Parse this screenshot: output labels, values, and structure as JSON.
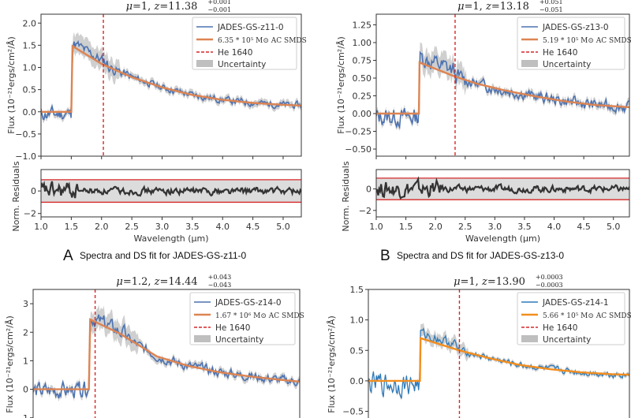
{
  "chart_data": [
    {
      "type": "line",
      "panel_letter": "A",
      "caption": "Spectra and DS fit for JADES-GS-z11-0",
      "title": {
        "mu": "1",
        "z": "11.38",
        "z_plus": "+0.001",
        "z_minus": "−0.001"
      },
      "xlabel": "Wavelength (μm)",
      "ylabel": "Flux (10⁻²¹ergs/cm²/Å)",
      "residual_ylabel": "Norm. Residuals",
      "xlim": [
        1.0,
        5.3
      ],
      "ylim": [
        -1.0,
        2.2
      ],
      "residual_ylim": [
        -2.3,
        1.9
      ],
      "xticks": [
        "1.0",
        "1.5",
        "2.0",
        "2.5",
        "3.0",
        "3.5",
        "4.0",
        "4.5",
        "5.0"
      ],
      "xtick_values": [
        1.0,
        1.5,
        2.0,
        2.5,
        3.0,
        3.5,
        4.0,
        4.5,
        5.0
      ],
      "yticks": [
        "−1.0",
        "−0.5",
        "0.0",
        "0.5",
        "1.0",
        "1.5",
        "2.0"
      ],
      "ytick_values": [
        -1.0,
        -0.5,
        0.0,
        0.5,
        1.0,
        1.5,
        2.0
      ],
      "residual_yticks": [
        "−2",
        "0"
      ],
      "residual_ytick_values": [
        -2,
        0
      ],
      "residual_band": [
        -1,
        1
      ],
      "legend": {
        "placement": "top-right",
        "entries": [
          "JADES-GS-z11-0",
          "6.35 * 10⁵ M⊙ AC SMDS",
          "He 1640",
          "Uncertainty"
        ]
      },
      "he_line": 2.03,
      "model": {
        "break": 1.5,
        "peak": 1.48,
        "points": [
          [
            1.0,
            0.0
          ],
          [
            1.5,
            0.0
          ],
          [
            1.52,
            1.48
          ],
          [
            2.0,
            1.08
          ],
          [
            2.5,
            0.78
          ],
          [
            3.0,
            0.55
          ],
          [
            3.5,
            0.38
          ],
          [
            4.0,
            0.27
          ],
          [
            4.5,
            0.2
          ],
          [
            5.0,
            0.16
          ],
          [
            5.3,
            0.14
          ]
        ]
      },
      "noise": {
        "pre": 0.25,
        "post": 0.12,
        "unc": 0.22,
        "seed": 11
      },
      "has_residuals": true
    },
    {
      "type": "line",
      "panel_letter": "B",
      "caption": "Spectra and DS fit for JADES-GS-z13-0",
      "title": {
        "mu": "1",
        "z": "13.18",
        "z_plus": "+0.051",
        "z_minus": "−0.051"
      },
      "xlabel": "Wavelength (μm)",
      "ylabel": "Flux (10⁻²¹ergs/cm²/Å)",
      "residual_ylabel": "Norm. Residuals",
      "xlim": [
        1.0,
        5.27
      ],
      "ylim": [
        -0.6,
        1.4
      ],
      "residual_ylim": [
        -2.6,
        1.8
      ],
      "xticks": [
        "1.0",
        "1.5",
        "2.0",
        "2.5",
        "3.0",
        "3.5",
        "4.0",
        "4.5",
        "5.0"
      ],
      "xtick_values": [
        1.0,
        1.5,
        2.0,
        2.5,
        3.0,
        3.5,
        4.0,
        4.5,
        5.0
      ],
      "yticks": [
        "−0.50",
        "−0.25",
        "0.00",
        "0.25",
        "0.50",
        "0.75",
        "1.00",
        "1.25"
      ],
      "ytick_values": [
        -0.5,
        -0.25,
        0.0,
        0.25,
        0.5,
        0.75,
        1.0,
        1.25
      ],
      "residual_yticks": [
        "−2",
        "0"
      ],
      "residual_ytick_values": [
        -2,
        0
      ],
      "residual_band": [
        -1,
        1
      ],
      "legend": {
        "placement": "top-right",
        "entries": [
          "JADES-GS-z13-0",
          "5.19 * 10⁵ M⊙ AC SMDS",
          "He 1640",
          "Uncertainty"
        ]
      },
      "he_line": 2.33,
      "model": {
        "break": 1.72,
        "peak": 0.72,
        "points": [
          [
            1.0,
            0.0
          ],
          [
            1.72,
            0.0
          ],
          [
            1.73,
            0.72
          ],
          [
            2.3,
            0.53
          ],
          [
            2.7,
            0.42
          ],
          [
            3.2,
            0.32
          ],
          [
            3.7,
            0.24
          ],
          [
            4.2,
            0.17
          ],
          [
            4.7,
            0.12
          ],
          [
            5.27,
            0.09
          ]
        ]
      },
      "noise": {
        "pre": 0.2,
        "post": 0.12,
        "unc": 0.15,
        "seed": 13
      },
      "has_residuals": true
    },
    {
      "type": "line",
      "panel_letter": "C",
      "title": {
        "mu": "1.2",
        "z": "14.44",
        "z_plus": "+0.043",
        "z_minus": "−0.043"
      },
      "ylabel": "Flux (10⁻²¹ergs/cm²/Å)",
      "xlim": [
        1.0,
        5.3
      ],
      "ylim": [
        -1.2,
        3.5
      ],
      "yticks": [
        "−1",
        "0",
        "1",
        "2",
        "3"
      ],
      "ytick_values": [
        -1,
        0,
        1,
        2,
        3
      ],
      "legend": {
        "placement": "top-right",
        "entries": [
          "JADES-GS-z14-0",
          "1.67 * 10⁶ M⊙ AC SMDS",
          "He 1640",
          "Uncertainty"
        ]
      },
      "he_line": 2.0,
      "model": {
        "break": 1.9,
        "peak": 2.45,
        "points": [
          [
            1.0,
            0.0
          ],
          [
            1.9,
            0.0
          ],
          [
            1.92,
            2.45
          ],
          [
            2.4,
            1.95
          ],
          [
            3.0,
            1.15
          ],
          [
            3.5,
            0.82
          ],
          [
            4.0,
            0.6
          ],
          [
            4.5,
            0.45
          ],
          [
            5.0,
            0.33
          ],
          [
            5.3,
            0.27
          ]
        ]
      },
      "noise": {
        "pre": 0.45,
        "post": 0.25,
        "unc": 0.35,
        "seed": 14
      },
      "has_residuals": false
    },
    {
      "type": "line",
      "panel_letter": "D",
      "title": {
        "mu": "1",
        "z": "13.90",
        "z_plus": "+0.0003",
        "z_minus": "−0.0003"
      },
      "ylabel": "Flux (10⁻²¹ergs/cm²/Å)",
      "xlim": [
        1.0,
        5.3
      ],
      "ylim": [
        -0.7,
        1.5
      ],
      "yticks": [
        "−0.5",
        "0.0",
        "0.5",
        "1.0",
        "1.5"
      ],
      "ytick_values": [
        -0.5,
        0.0,
        0.5,
        1.0,
        1.5
      ],
      "legend": {
        "placement": "top-right",
        "entries": [
          "JADES-GS-z14-1",
          "5.66 * 10⁵ M⊙ AC SMDS",
          "He 1640",
          "Uncertainty"
        ]
      },
      "he_line": 2.5,
      "model": {
        "break": 1.85,
        "peak": 0.7,
        "points": [
          [
            1.0,
            0.0
          ],
          [
            1.85,
            0.0
          ],
          [
            1.86,
            0.7
          ],
          [
            2.5,
            0.5
          ],
          [
            3.0,
            0.37
          ],
          [
            3.5,
            0.26
          ],
          [
            4.0,
            0.19
          ],
          [
            4.5,
            0.14
          ],
          [
            5.0,
            0.11
          ],
          [
            5.3,
            0.1
          ]
        ]
      },
      "noise": {
        "pre": 0.3,
        "post": 0.08,
        "unc": 0.1,
        "seed": 141
      },
      "has_residuals": false
    }
  ],
  "colors": {
    "data": "#4c72b0",
    "data_d": "#2f7ab8",
    "model": "#dd8452",
    "model_d": "#f28e1f",
    "he_line": "#d62728",
    "uncertainty": "#bfbfbf",
    "residual_line": "#333333",
    "residual_band": "#dcdcdc",
    "residual_limit": "#d62728"
  }
}
